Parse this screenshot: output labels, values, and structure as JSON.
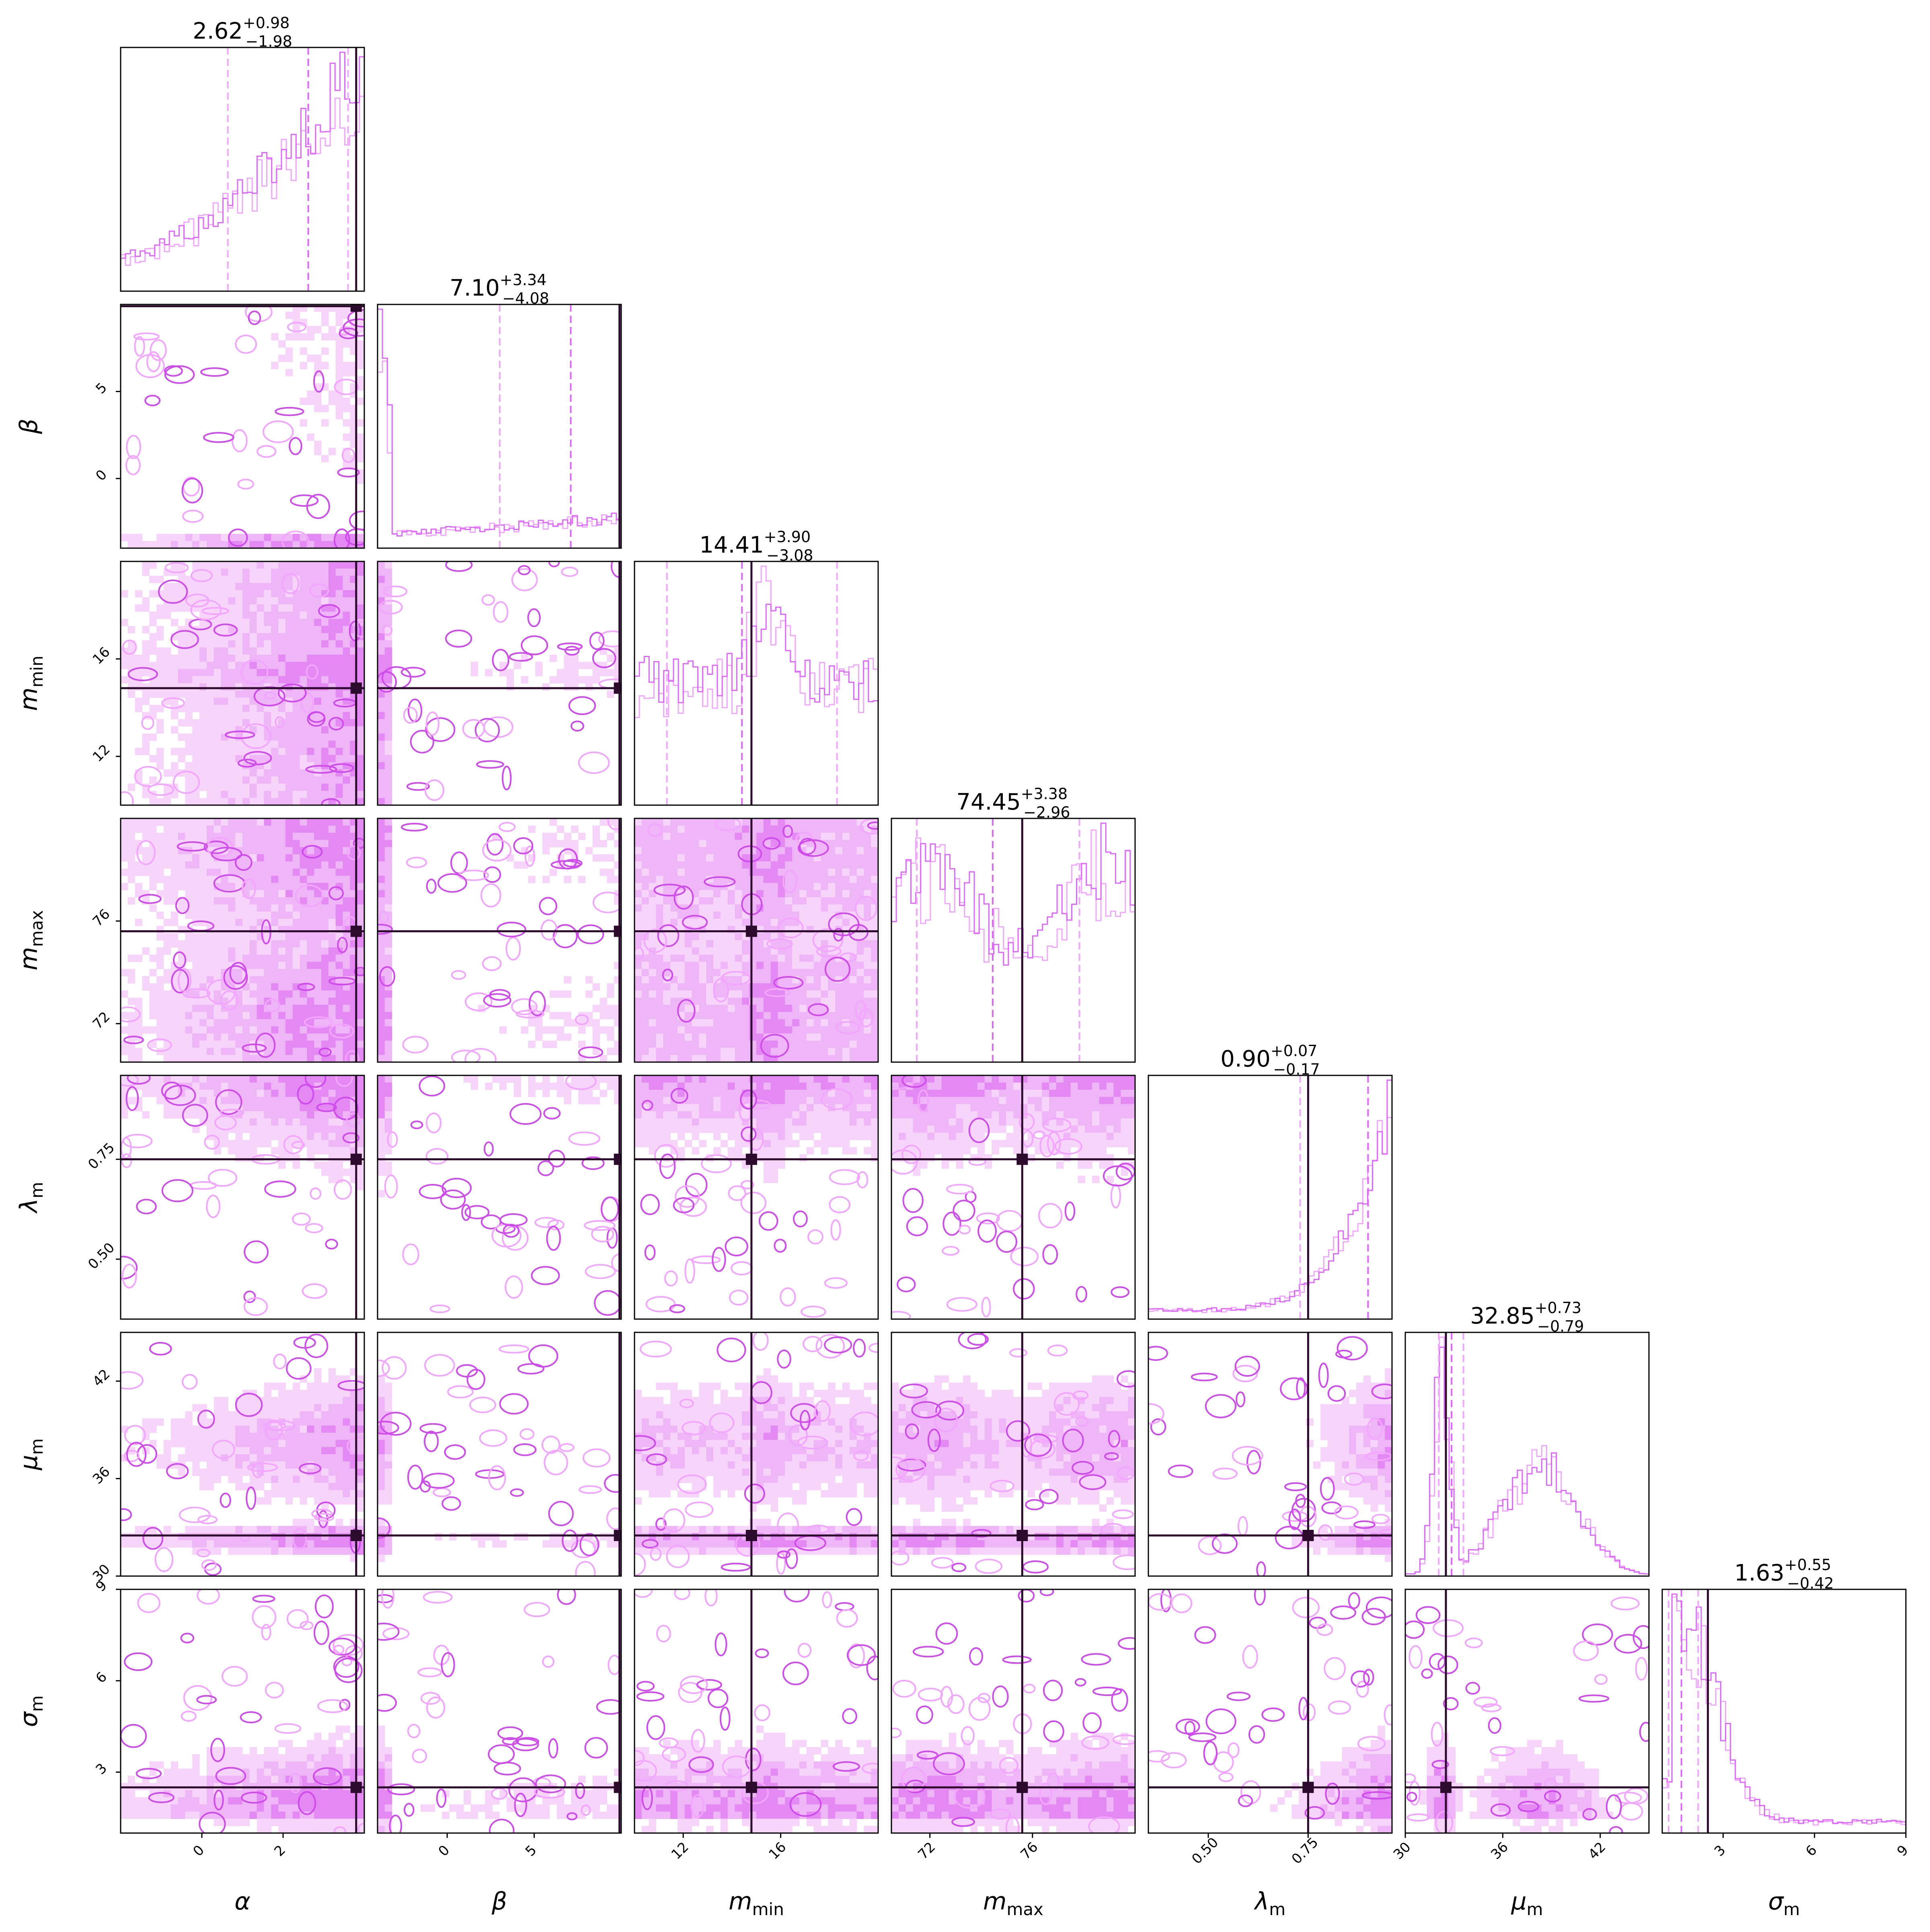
{
  "chart_data": {
    "type": "corner",
    "parameters": [
      {
        "key": "alpha",
        "label": "α",
        "sub": "",
        "range": [
          -2,
          4
        ],
        "ticks": [
          0,
          2
        ],
        "tick_labels": [
          "0",
          "2"
        ],
        "title_value": "2.62",
        "title_plus": "+0.98",
        "title_minus": "−1.98",
        "truth": 3.8,
        "quantiles": [
          0.64,
          2.62,
          3.6
        ]
      },
      {
        "key": "beta",
        "label": "β",
        "sub": "",
        "range": [
          -4,
          10
        ],
        "ticks": [
          0,
          5
        ],
        "tick_labels": [
          "0",
          "5"
        ],
        "title_value": "7.10",
        "title_plus": "+3.34",
        "title_minus": "−4.08",
        "truth": 9.9,
        "quantiles": [
          3.02,
          7.1,
          10.4
        ]
      },
      {
        "key": "m_min",
        "label": "m",
        "sub": "min",
        "range": [
          10,
          20
        ],
        "ticks": [
          12,
          16
        ],
        "tick_labels": [
          "12",
          "16"
        ],
        "title_value": "14.41",
        "title_plus": "+3.90",
        "title_minus": "−3.08",
        "truth": 14.8,
        "quantiles": [
          11.33,
          14.41,
          18.31
        ]
      },
      {
        "key": "m_max",
        "label": "m",
        "sub": "max",
        "range": [
          70.5,
          80
        ],
        "ticks": [
          72,
          76
        ],
        "tick_labels": [
          "72",
          "76"
        ],
        "title_value": "74.45",
        "title_plus": "+3.38",
        "title_minus": "−2.96",
        "truth": 75.6,
        "quantiles": [
          71.49,
          74.45,
          77.83
        ]
      },
      {
        "key": "lambda",
        "label": "λ",
        "sub": "m",
        "range": [
          0.35,
          0.96
        ],
        "ticks": [
          0.5,
          0.75
        ],
        "tick_labels": [
          "0.50",
          "0.75"
        ],
        "title_value": "0.90",
        "title_plus": "+0.07",
        "title_minus": "−0.17",
        "truth": 0.75,
        "quantiles": [
          0.73,
          0.9,
          0.97
        ]
      },
      {
        "key": "mu",
        "label": "μ",
        "sub": "m",
        "range": [
          30,
          45
        ],
        "ticks": [
          30,
          36,
          42
        ],
        "tick_labels": [
          "30",
          "36",
          "42"
        ],
        "title_value": "32.85",
        "title_plus": "+0.73",
        "title_minus": "−0.79",
        "truth": 32.5,
        "quantiles": [
          32.06,
          32.85,
          33.58
        ]
      },
      {
        "key": "sigma",
        "label": "σ",
        "sub": "m",
        "range": [
          1,
          9
        ],
        "ticks": [
          3,
          6,
          9
        ],
        "tick_labels": [
          "3",
          "6",
          "9"
        ],
        "title_value": "1.63",
        "title_plus": "+0.55",
        "title_minus": "−0.42",
        "truth": 2.5,
        "quantiles": [
          1.21,
          1.63,
          2.18
        ]
      }
    ],
    "colors": {
      "hist": "#e066ff",
      "hist_light": "#f2a6ff",
      "contour_dark": "#cf4bec",
      "contour_fill_1": "#f7d5fb",
      "contour_fill_2": "#efb6f7",
      "contour_fill_3": "#e489f3",
      "truth": "#2b0a2b"
    },
    "layout_grid": "lower-triangular 7x7",
    "grid": false,
    "legend": "none"
  }
}
